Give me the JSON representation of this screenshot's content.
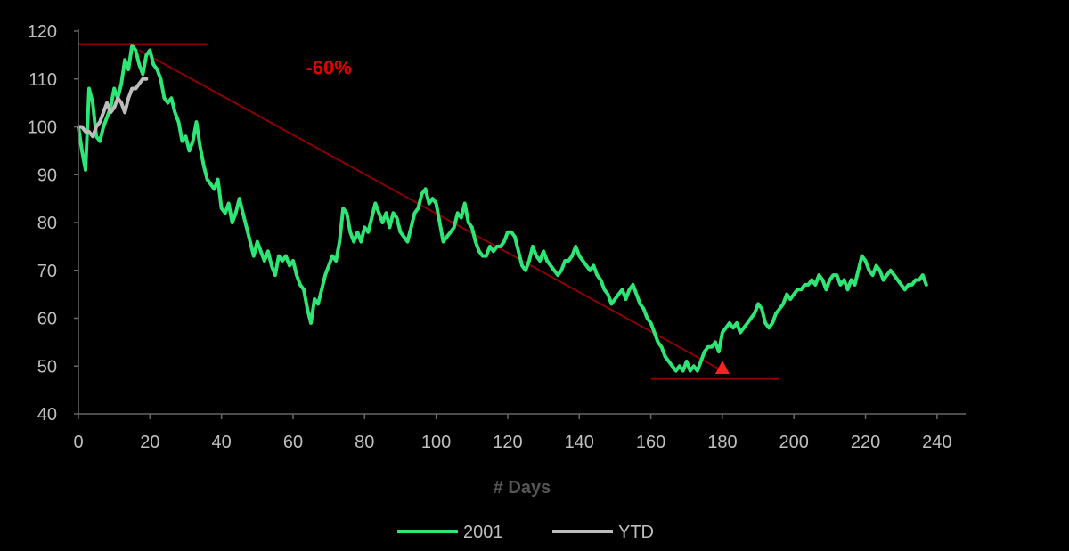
{
  "chart_data": {
    "type": "line",
    "xlabel": "# Days",
    "xlim": [
      0,
      248
    ],
    "ylim": [
      40,
      120
    ],
    "x_ticks": [
      0,
      20,
      40,
      60,
      80,
      100,
      120,
      140,
      160,
      180,
      200,
      220,
      240
    ],
    "y_ticks": [
      40,
      50,
      60,
      70,
      80,
      90,
      100,
      110,
      120
    ],
    "grid": false,
    "legend_position": "bottom",
    "series": [
      {
        "name": "2001",
        "color": "#2ee676",
        "points": [
          [
            0,
            100
          ],
          [
            1,
            95
          ],
          [
            2,
            91
          ],
          [
            3,
            108
          ],
          [
            4,
            105
          ],
          [
            5,
            98
          ],
          [
            6,
            97
          ],
          [
            7,
            100
          ],
          [
            8,
            102
          ],
          [
            9,
            104
          ],
          [
            10,
            108
          ],
          [
            11,
            106
          ],
          [
            12,
            109
          ],
          [
            13,
            114
          ],
          [
            14,
            112
          ],
          [
            15,
            117
          ],
          [
            16,
            116
          ],
          [
            17,
            113
          ],
          [
            18,
            111
          ],
          [
            19,
            115
          ],
          [
            20,
            116
          ],
          [
            21,
            113
          ],
          [
            22,
            112
          ],
          [
            23,
            110
          ],
          [
            24,
            106
          ],
          [
            25,
            105
          ],
          [
            26,
            106
          ],
          [
            27,
            103
          ],
          [
            28,
            101
          ],
          [
            29,
            97
          ],
          [
            30,
            98
          ],
          [
            31,
            95
          ],
          [
            32,
            97
          ],
          [
            33,
            101
          ],
          [
            34,
            96
          ],
          [
            35,
            92
          ],
          [
            36,
            89
          ],
          [
            37,
            88
          ],
          [
            38,
            87
          ],
          [
            39,
            89
          ],
          [
            40,
            83
          ],
          [
            41,
            82
          ],
          [
            42,
            84
          ],
          [
            43,
            80
          ],
          [
            44,
            82
          ],
          [
            45,
            85
          ],
          [
            46,
            82
          ],
          [
            47,
            79
          ],
          [
            48,
            76
          ],
          [
            49,
            73
          ],
          [
            50,
            76
          ],
          [
            51,
            74
          ],
          [
            52,
            72
          ],
          [
            53,
            74
          ],
          [
            54,
            71
          ],
          [
            55,
            69
          ],
          [
            56,
            73
          ],
          [
            57,
            72
          ],
          [
            58,
            73
          ],
          [
            59,
            71
          ],
          [
            60,
            72
          ],
          [
            61,
            69
          ],
          [
            62,
            67
          ],
          [
            63,
            66
          ],
          [
            64,
            62
          ],
          [
            65,
            59
          ],
          [
            66,
            64
          ],
          [
            67,
            63
          ],
          [
            68,
            66
          ],
          [
            69,
            69
          ],
          [
            70,
            71
          ],
          [
            71,
            73
          ],
          [
            72,
            72
          ],
          [
            73,
            76
          ],
          [
            74,
            83
          ],
          [
            75,
            82
          ],
          [
            76,
            78
          ],
          [
            77,
            76
          ],
          [
            78,
            78
          ],
          [
            79,
            76
          ],
          [
            80,
            79
          ],
          [
            81,
            78
          ],
          [
            82,
            81
          ],
          [
            83,
            84
          ],
          [
            84,
            82
          ],
          [
            85,
            80
          ],
          [
            86,
            82
          ],
          [
            87,
            79
          ],
          [
            88,
            82
          ],
          [
            89,
            81
          ],
          [
            90,
            78
          ],
          [
            91,
            77
          ],
          [
            92,
            76
          ],
          [
            93,
            79
          ],
          [
            94,
            82
          ],
          [
            95,
            83
          ],
          [
            96,
            86
          ],
          [
            97,
            87
          ],
          [
            98,
            84
          ],
          [
            99,
            85
          ],
          [
            100,
            84
          ],
          [
            101,
            80
          ],
          [
            102,
            76
          ],
          [
            103,
            77
          ],
          [
            104,
            78
          ],
          [
            105,
            79
          ],
          [
            106,
            82
          ],
          [
            107,
            81
          ],
          [
            108,
            84
          ],
          [
            109,
            80
          ],
          [
            110,
            79
          ],
          [
            111,
            76
          ],
          [
            112,
            74
          ],
          [
            113,
            73
          ],
          [
            114,
            73
          ],
          [
            115,
            75
          ],
          [
            116,
            74
          ],
          [
            117,
            75
          ],
          [
            118,
            75
          ],
          [
            119,
            76
          ],
          [
            120,
            78
          ],
          [
            121,
            78
          ],
          [
            122,
            77
          ],
          [
            123,
            74
          ],
          [
            124,
            71
          ],
          [
            125,
            70
          ],
          [
            126,
            72
          ],
          [
            127,
            75
          ],
          [
            128,
            73
          ],
          [
            129,
            72
          ],
          [
            130,
            74
          ],
          [
            131,
            72
          ],
          [
            132,
            71
          ],
          [
            133,
            70
          ],
          [
            134,
            69
          ],
          [
            135,
            70
          ],
          [
            136,
            72
          ],
          [
            137,
            72
          ],
          [
            138,
            73
          ],
          [
            139,
            75
          ],
          [
            140,
            73
          ],
          [
            141,
            72
          ],
          [
            142,
            71
          ],
          [
            143,
            70
          ],
          [
            144,
            71
          ],
          [
            145,
            69
          ],
          [
            146,
            68
          ],
          [
            147,
            66
          ],
          [
            148,
            65
          ],
          [
            149,
            63
          ],
          [
            150,
            64
          ],
          [
            151,
            65
          ],
          [
            152,
            66
          ],
          [
            153,
            64
          ],
          [
            154,
            66
          ],
          [
            155,
            67
          ],
          [
            156,
            65
          ],
          [
            157,
            63
          ],
          [
            158,
            62
          ],
          [
            159,
            60
          ],
          [
            160,
            59
          ],
          [
            161,
            57
          ],
          [
            162,
            55
          ],
          [
            163,
            54
          ],
          [
            164,
            52
          ],
          [
            165,
            51
          ],
          [
            166,
            50
          ],
          [
            167,
            49
          ],
          [
            168,
            50
          ],
          [
            169,
            49
          ],
          [
            170,
            51
          ],
          [
            171,
            49
          ],
          [
            172,
            50
          ],
          [
            173,
            49
          ],
          [
            174,
            51
          ],
          [
            175,
            53
          ],
          [
            176,
            54
          ],
          [
            177,
            54
          ],
          [
            178,
            55
          ],
          [
            179,
            53
          ],
          [
            180,
            57
          ],
          [
            181,
            58
          ],
          [
            182,
            59
          ],
          [
            183,
            58
          ],
          [
            184,
            59
          ],
          [
            185,
            57
          ],
          [
            186,
            58
          ],
          [
            187,
            59
          ],
          [
            188,
            60
          ],
          [
            189,
            61
          ],
          [
            190,
            63
          ],
          [
            191,
            62
          ],
          [
            192,
            59
          ],
          [
            193,
            58
          ],
          [
            194,
            59
          ],
          [
            195,
            61
          ],
          [
            196,
            62
          ],
          [
            197,
            63
          ],
          [
            198,
            65
          ],
          [
            199,
            64
          ],
          [
            200,
            65
          ],
          [
            201,
            66
          ],
          [
            202,
            66
          ],
          [
            203,
            67
          ],
          [
            204,
            67
          ],
          [
            205,
            68
          ],
          [
            206,
            67
          ],
          [
            207,
            69
          ],
          [
            208,
            68
          ],
          [
            209,
            66
          ],
          [
            210,
            68
          ],
          [
            211,
            69
          ],
          [
            212,
            69
          ],
          [
            213,
            67
          ],
          [
            214,
            68
          ],
          [
            215,
            66
          ],
          [
            216,
            68
          ],
          [
            217,
            67
          ],
          [
            218,
            70
          ],
          [
            219,
            73
          ],
          [
            220,
            72
          ],
          [
            221,
            70
          ],
          [
            222,
            69
          ],
          [
            223,
            71
          ],
          [
            224,
            70
          ],
          [
            225,
            68
          ],
          [
            226,
            69
          ],
          [
            227,
            70
          ],
          [
            228,
            69
          ],
          [
            229,
            68
          ],
          [
            230,
            67
          ],
          [
            231,
            66
          ],
          [
            232,
            67
          ],
          [
            233,
            67
          ],
          [
            234,
            68
          ],
          [
            235,
            68
          ],
          [
            236,
            69
          ],
          [
            237,
            67
          ]
        ]
      },
      {
        "name": "YTD",
        "color": "#bdbdbd",
        "points": [
          [
            0,
            100
          ],
          [
            1,
            100
          ],
          [
            2,
            99
          ],
          [
            3,
            99
          ],
          [
            4,
            98
          ],
          [
            5,
            100
          ],
          [
            6,
            101
          ],
          [
            7,
            103
          ],
          [
            8,
            105
          ],
          [
            9,
            103
          ],
          [
            10,
            104
          ],
          [
            11,
            106
          ],
          [
            12,
            105
          ],
          [
            13,
            103
          ],
          [
            14,
            106
          ],
          [
            15,
            108
          ],
          [
            16,
            108
          ],
          [
            17,
            109
          ],
          [
            18,
            110
          ],
          [
            19,
            110
          ]
        ]
      }
    ],
    "annotations": [
      {
        "text": "-60%",
        "x": 70,
        "y": 111
      }
    ],
    "reference_lines": [
      {
        "color": "#8b0000",
        "x1": 0,
        "y1": 117.3,
        "x2": 36,
        "y2": 117.3
      },
      {
        "color": "#8b0000",
        "x1": 160,
        "y1": 47.3,
        "x2": 196,
        "y2": 47.3
      },
      {
        "color": "#8b0000",
        "x1": 17,
        "y1": 116,
        "x2": 180,
        "y2": 49
      }
    ],
    "marker": {
      "shape": "triangle",
      "color": "#ff2020",
      "x": 180,
      "y": 49.5
    }
  }
}
